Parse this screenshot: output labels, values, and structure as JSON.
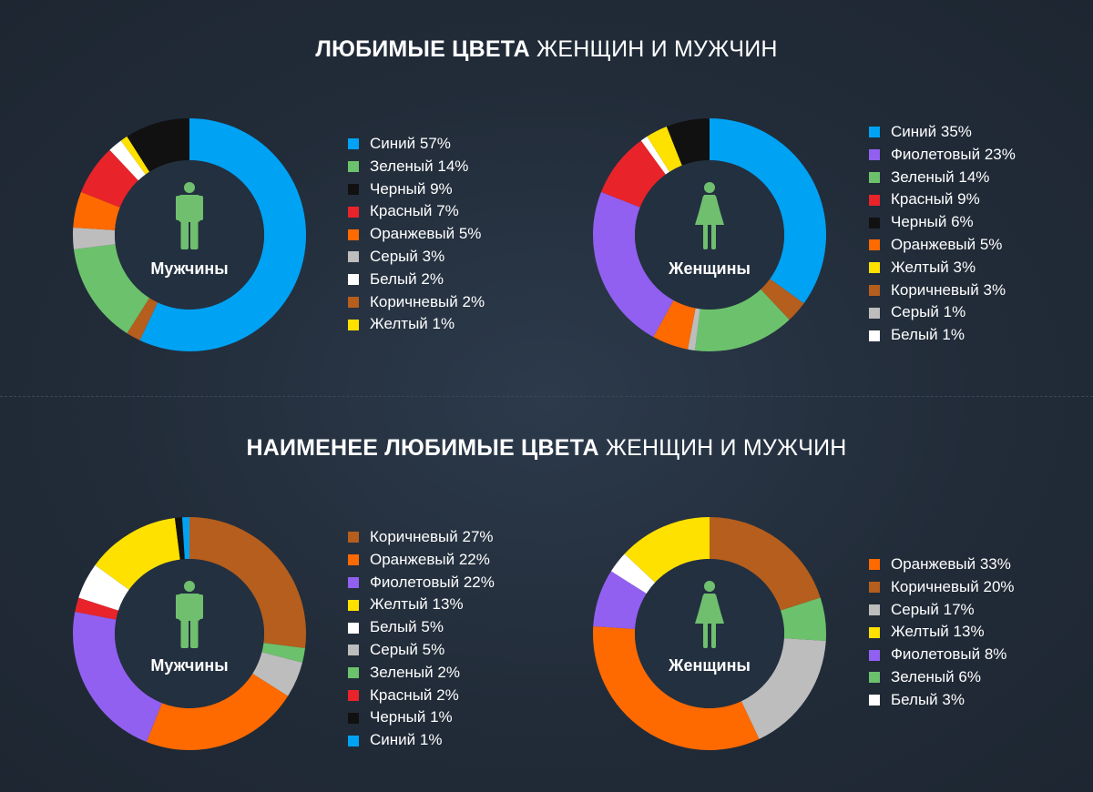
{
  "colors": {
    "blue": "#00a2f4",
    "green": "#6cc26c",
    "black": "#111111",
    "red": "#e8232a",
    "orange": "#ff6a00",
    "gray": "#bdbdbd",
    "white": "#ffffff",
    "brown": "#b55e1d",
    "yellow": "#ffe100",
    "violet": "#9160f0",
    "figure": "#6fbf6f",
    "hole": "#233040"
  },
  "titles": {
    "favorite_bold": "ЛЮБИМЫЕ ЦВЕТА",
    "favorite_rest": "ЖЕНЩИН И МУЖЧИН",
    "least_bold": "НАИМЕНЕЕ ЛЮБИМЫЕ ЦВЕТА",
    "least_rest": "ЖЕНЩИН И МУЖЧИН"
  },
  "chart_data": [
    {
      "type": "pie",
      "group": "favorite",
      "title": "Мужчины",
      "figure_icon": "man-icon",
      "slices": [
        {
          "label": "Синий",
          "value": 57,
          "display": "57%",
          "color": "blue"
        },
        {
          "label": "Коричневый",
          "value": 2,
          "display": "2%",
          "color": "brown"
        },
        {
          "label": "Зеленый",
          "value": 14,
          "display": "14%",
          "color": "green"
        },
        {
          "label": "Серый",
          "value": 3,
          "display": "3%",
          "color": "gray"
        },
        {
          "label": "Оранжевый",
          "value": 5,
          "display": "5%",
          "color": "orange"
        },
        {
          "label": "Красный",
          "value": 7,
          "display": "7%",
          "color": "red"
        },
        {
          "label": "Белый",
          "value": 2,
          "display": "2%",
          "color": "white"
        },
        {
          "label": "Желтый",
          "value": 1,
          "display": "1%",
          "color": "yellow"
        },
        {
          "label": "Черный",
          "value": 9,
          "display": "9%",
          "color": "black"
        }
      ],
      "legend_order": [
        "Синий",
        "Зеленый",
        "Черный",
        "Красный",
        "Оранжевый",
        "Серый",
        "Белый",
        "Коричневый",
        "Желтый"
      ]
    },
    {
      "type": "pie",
      "group": "favorite",
      "title": "Женщины",
      "figure_icon": "woman-icon",
      "slices": [
        {
          "label": "Синий",
          "value": 35,
          "display": "35%",
          "color": "blue"
        },
        {
          "label": "Коричневый",
          "value": 3,
          "display": "3%",
          "color": "brown"
        },
        {
          "label": "Зеленый",
          "value": 14,
          "display": "14%",
          "color": "green"
        },
        {
          "label": "Серый",
          "value": 1,
          "display": "1%",
          "color": "gray"
        },
        {
          "label": "Оранжевый",
          "value": 5,
          "display": "5%",
          "color": "orange"
        },
        {
          "label": "Фиолетовый",
          "value": 23,
          "display": "23%",
          "color": "violet"
        },
        {
          "label": "Красный",
          "value": 9,
          "display": "9%",
          "color": "red"
        },
        {
          "label": "Белый",
          "value": 1,
          "display": "1%",
          "color": "white"
        },
        {
          "label": "Желтый",
          "value": 3,
          "display": "3%",
          "color": "yellow"
        },
        {
          "label": "Черный",
          "value": 6,
          "display": "6%",
          "color": "black"
        }
      ],
      "legend_order": [
        "Синий",
        "Фиолетовый",
        "Зеленый",
        "Красный",
        "Черный",
        "Оранжевый",
        "Желтый",
        "Коричневый",
        "Серый",
        "Белый"
      ]
    },
    {
      "type": "pie",
      "group": "least_favorite",
      "title": "Мужчины",
      "figure_icon": "man-icon",
      "slices": [
        {
          "label": "Коричневый",
          "value": 27,
          "display": "27%",
          "color": "brown"
        },
        {
          "label": "Зеленый",
          "value": 2,
          "display": "2%",
          "color": "green"
        },
        {
          "label": "Серый",
          "value": 5,
          "display": "5%",
          "color": "gray"
        },
        {
          "label": "Оранжевый",
          "value": 22,
          "display": "22%",
          "color": "orange"
        },
        {
          "label": "Фиолетовый",
          "value": 22,
          "display": "22%",
          "color": "violet"
        },
        {
          "label": "Красный",
          "value": 2,
          "display": "2%",
          "color": "red"
        },
        {
          "label": "Белый",
          "value": 5,
          "display": "5%",
          "color": "white"
        },
        {
          "label": "Желтый",
          "value": 13,
          "display": "13%",
          "color": "yellow"
        },
        {
          "label": "Черный",
          "value": 1,
          "display": "1%",
          "color": "black"
        },
        {
          "label": "Синий",
          "value": 1,
          "display": "1%",
          "color": "blue"
        }
      ],
      "legend_order": [
        "Коричневый",
        "Оранжевый",
        "Фиолетовый",
        "Желтый",
        "Белый",
        "Серый",
        "Зеленый",
        "Красный",
        "Черный",
        "Синий"
      ]
    },
    {
      "type": "pie",
      "group": "least_favorite",
      "title": "Женщины",
      "figure_icon": "woman-icon",
      "slices": [
        {
          "label": "Коричневый",
          "value": 20,
          "display": "20%",
          "color": "brown"
        },
        {
          "label": "Зеленый",
          "value": 6,
          "display": "6%",
          "color": "green"
        },
        {
          "label": "Серый",
          "value": 17,
          "display": "17%",
          "color": "gray"
        },
        {
          "label": "Оранжевый",
          "value": 33,
          "display": "33%",
          "color": "orange"
        },
        {
          "label": "Фиолетовый",
          "value": 8,
          "display": "8%",
          "color": "violet"
        },
        {
          "label": "Белый",
          "value": 3,
          "display": "3%",
          "color": "white"
        },
        {
          "label": "Желтый",
          "value": 13,
          "display": "13%",
          "color": "yellow"
        }
      ],
      "legend_order": [
        "Оранжевый",
        "Коричневый",
        "Серый",
        "Желтый",
        "Фиолетовый",
        "Зеленый",
        "Белый"
      ]
    }
  ]
}
